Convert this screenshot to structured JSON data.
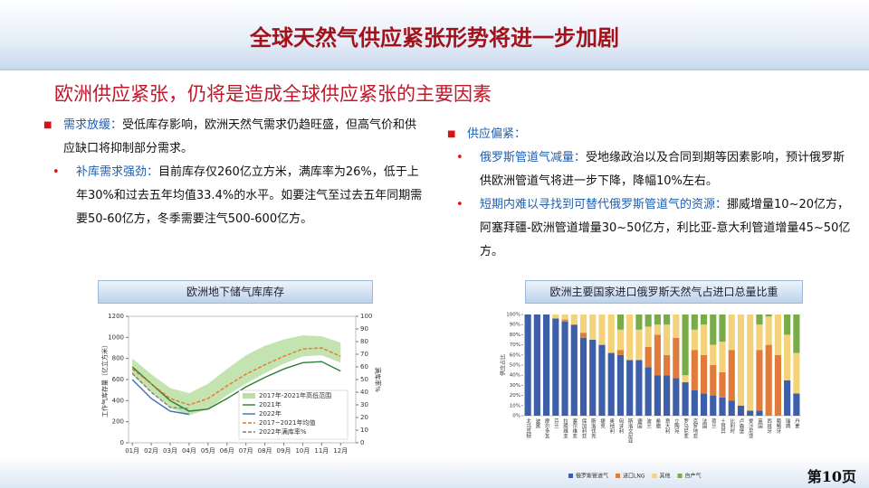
{
  "title": "全球天然气供应紧张形势将进一步加剧",
  "subtitle": "欧洲供应紧张，仍将是造成全球供应紧张的主要因素",
  "left_points": [
    {
      "bullet": "square",
      "lead": "需求放缓：",
      "text": "受低库存影响，欧洲天然气需求仍趋旺盛，但高气价和供应缺口将抑制部分需求。"
    },
    {
      "bullet": "dot",
      "lead": "补库需求强劲：",
      "text": "目前库存仅260亿立方米，满库率为26%，低于上年30%和过去五年均值33.4%的水平。如要注气至过去五年同期需要50-60亿方，冬季需要注气500-600亿方。"
    }
  ],
  "right_points": [
    {
      "bullet": "square",
      "lead": "供应偏紧：",
      "text": ""
    },
    {
      "bullet": "dot",
      "lead": "俄罗斯管道气减量：",
      "text": "受地缘政治以及合同到期等因素影响，预计俄罗斯供欧洲管道气将进一步下降，降幅10%左右。"
    },
    {
      "bullet": "dot",
      "lead": "短期内难以寻找到可替代俄罗斯管道气的资源：",
      "text": "挪威增量10~20亿方，阿塞拜疆-欧洲管道增量30~50亿方，利比亚-意大利管道增量45~50亿方。"
    }
  ],
  "page_number": "第10页",
  "chart_data": [
    {
      "type": "line",
      "title": "欧洲地下储气库库存",
      "ylabel": "工作气库存量（亿立方米）",
      "y2label": "满库率%",
      "x": [
        1,
        2,
        3,
        4,
        5,
        6,
        7,
        8,
        9,
        10,
        11,
        12
      ],
      "xlim": [
        0.8,
        12.8
      ],
      "xticks": [
        {
          "value": 1,
          "label": "01月"
        },
        {
          "value": 2,
          "label": "02月"
        },
        {
          "value": 3,
          "label": "03月"
        },
        {
          "value": 4,
          "label": "04月"
        },
        {
          "value": 5,
          "label": "05月"
        },
        {
          "value": 6,
          "label": "06月"
        },
        {
          "value": 7,
          "label": "07月"
        },
        {
          "value": 8,
          "label": "08月"
        },
        {
          "value": 9,
          "label": "09月"
        },
        {
          "value": 10,
          "label": "10月"
        },
        {
          "value": 11,
          "label": "11月"
        },
        {
          "value": 12,
          "label": "12月"
        }
      ],
      "ylim": [
        0,
        1200
      ],
      "yticks": [
        0,
        200,
        400,
        600,
        800,
        1000,
        1200
      ],
      "y2lim": [
        0,
        100
      ],
      "y2ticks": [
        0,
        10,
        20,
        30,
        40,
        50,
        60,
        70,
        80,
        90,
        100
      ],
      "series": [
        {
          "name": "2017年-2021年高低范围",
          "type": "range",
          "color": "#b9dfa3",
          "low": [
            640,
            480,
            330,
            260,
            320,
            450,
            560,
            660,
            750,
            820,
            830,
            760
          ],
          "high": [
            800,
            650,
            520,
            470,
            560,
            700,
            830,
            920,
            980,
            1020,
            1010,
            950
          ]
        },
        {
          "name": "2021年",
          "color": "#2e7d32",
          "dash": false,
          "values": [
            720,
            560,
            400,
            300,
            320,
            420,
            530,
            620,
            700,
            760,
            770,
            680
          ]
        },
        {
          "name": "2022年",
          "color": "#3a6fb0",
          "dash": false,
          "values": [
            600,
            420,
            300,
            270,
            null,
            null,
            null,
            null,
            null,
            null,
            null,
            null
          ]
        },
        {
          "name": "2017~2021年均值",
          "color": "#e8762c",
          "dash": true,
          "values": [
            700,
            560,
            420,
            360,
            420,
            540,
            650,
            740,
            820,
            890,
            900,
            820
          ]
        },
        {
          "name": "2022年满库率%",
          "color": "#7f7f7f",
          "dash": true,
          "axis": "y2",
          "values": [
            55,
            40,
            28,
            27,
            null,
            null,
            null,
            null,
            null,
            null,
            null,
            null
          ]
        }
      ]
    },
    {
      "type": "stacked_bar",
      "title": "欧洲主要国家进口俄罗斯天然气占进口总量比重",
      "ylabel": "供应占比",
      "ylim": [
        0,
        100
      ],
      "yticks": [
        {
          "value": 0,
          "label": "0%"
        },
        {
          "value": 10,
          "label": "10%"
        },
        {
          "value": 20,
          "label": "20%"
        },
        {
          "value": 30,
          "label": "30%"
        },
        {
          "value": 40,
          "label": "40%"
        },
        {
          "value": 50,
          "label": "50%"
        },
        {
          "value": 60,
          "label": "60%"
        },
        {
          "value": 70,
          "label": "70%"
        },
        {
          "value": 80,
          "label": "80%"
        },
        {
          "value": 90,
          "label": "90%"
        },
        {
          "value": 100,
          "label": "100%"
        }
      ],
      "categories": [
        "北马其顿",
        "波黑",
        "摩尔多瓦",
        "芬兰",
        "拉脱维亚",
        "塞尔维亚",
        "保加利亚",
        "斯洛伐克",
        "捷克",
        "奥地利",
        "匈牙利",
        "斯洛文尼亚",
        "德国",
        "波兰",
        "希腊",
        "意大利",
        "立陶宛",
        "罗马尼亚",
        "克罗地亚",
        "法国",
        "荷兰",
        "土耳其",
        "比利时",
        "卢森堡",
        "爱沙尼亚",
        "英国",
        "西班牙",
        "葡萄牙",
        "瑞典",
        "丹麦"
      ],
      "series": [
        {
          "name": "俄罗斯管道气",
          "color": "#3d5ea8",
          "values": [
            100,
            100,
            100,
            96,
            93,
            90,
            77,
            75,
            70,
            62,
            60,
            55,
            55,
            48,
            40,
            40,
            37,
            33,
            25,
            22,
            20,
            18,
            15,
            10,
            5,
            5,
            0,
            0,
            35,
            22
          ]
        },
        {
          "name": "进口LNG",
          "color": "#e07b39",
          "values": [
            0,
            0,
            0,
            0,
            2,
            0,
            5,
            0,
            0,
            0,
            5,
            0,
            0,
            20,
            40,
            20,
            40,
            0,
            40,
            38,
            30,
            25,
            50,
            0,
            0,
            60,
            70,
            60,
            0,
            0
          ]
        },
        {
          "name": "其他",
          "color": "#f3d27a",
          "values": [
            0,
            0,
            0,
            4,
            5,
            10,
            18,
            25,
            30,
            38,
            20,
            45,
            30,
            20,
            10,
            30,
            23,
            7,
            20,
            30,
            20,
            30,
            35,
            90,
            95,
            25,
            28,
            40,
            45,
            40
          ]
        },
        {
          "name": "自产气",
          "color": "#7aab4b",
          "values": [
            0,
            0,
            0,
            0,
            0,
            0,
            0,
            0,
            0,
            0,
            15,
            0,
            15,
            12,
            10,
            10,
            0,
            60,
            15,
            10,
            30,
            27,
            0,
            0,
            0,
            10,
            2,
            0,
            20,
            38
          ]
        }
      ]
    }
  ]
}
